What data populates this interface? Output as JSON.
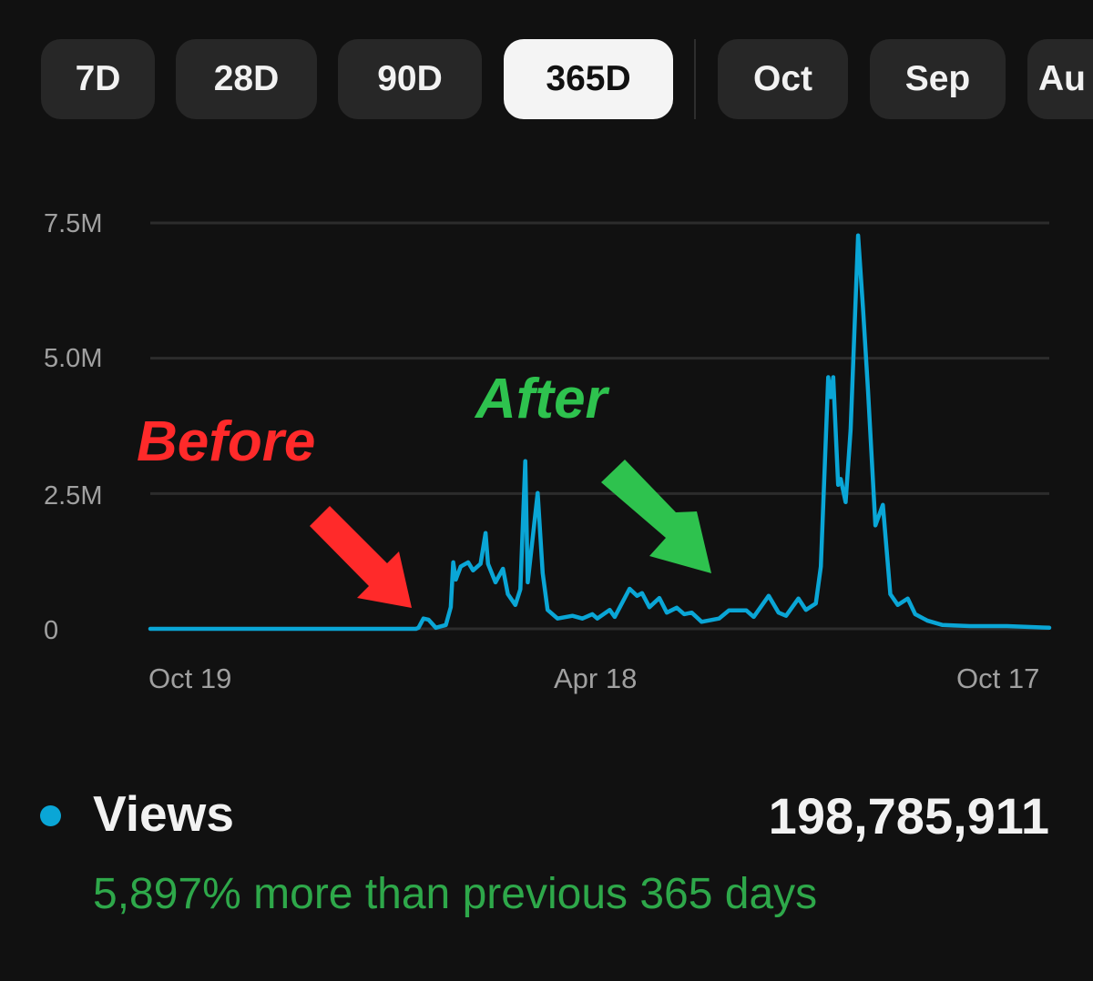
{
  "tabs": [
    {
      "label": "7D",
      "selected": false
    },
    {
      "label": "28D",
      "selected": false
    },
    {
      "label": "90D",
      "selected": false
    },
    {
      "label": "365D",
      "selected": true
    },
    {
      "label": "Oct",
      "selected": false
    },
    {
      "label": "Sep",
      "selected": false
    },
    {
      "label": "Au",
      "selected": false
    }
  ],
  "annotations": {
    "before": "Before",
    "after": "After",
    "before_color": "#ff2a2a",
    "after_color": "#2ec24e"
  },
  "summary": {
    "metric": "Views",
    "total": "198,785,911",
    "comparison": "5,897% more than previous 365 days",
    "dot_color": "#0aa6d6",
    "comparison_color": "#2ea84a"
  },
  "chart_data": {
    "type": "line",
    "title": "",
    "xlabel": "",
    "ylabel": "",
    "x_tick_labels": [
      "Oct 19",
      "Apr 18",
      "Oct 17"
    ],
    "y_tick_labels": [
      "0",
      "2.5M",
      "5.0M",
      "7.5M"
    ],
    "y_ticks": [
      0,
      2500000,
      5000000,
      7500000
    ],
    "ylim": [
      0,
      7500000
    ],
    "xlim": [
      "Oct 19",
      "Oct 17"
    ],
    "grid": true,
    "series_color": "#0aa6d6",
    "unit": "millions of views per day",
    "series": [
      {
        "points": [
          [
            "Oct 19",
            0
          ],
          [
            "Feb 3",
            0
          ],
          [
            "Feb 4",
            0.02
          ],
          [
            "Feb 6",
            0.19
          ],
          [
            "Feb 8",
            0.17
          ],
          [
            "Feb 11",
            0.02
          ],
          [
            "Feb 15",
            0.07
          ],
          [
            "Feb 17",
            0.4
          ],
          [
            "Feb 18",
            1.23
          ],
          [
            "Feb 19",
            0.91
          ],
          [
            "Feb 21",
            1.15
          ],
          [
            "Feb 24",
            1.23
          ],
          [
            "Feb 26",
            1.08
          ],
          [
            "Mar 1",
            1.2
          ],
          [
            "Mar 3",
            1.77
          ],
          [
            "Mar 4",
            1.2
          ],
          [
            "Mar 7",
            0.86
          ],
          [
            "Mar 10",
            1.11
          ],
          [
            "Mar 12",
            0.64
          ],
          [
            "Mar 15",
            0.44
          ],
          [
            "Mar 17",
            0.73
          ],
          [
            "Mar 19",
            3.1
          ],
          [
            "Mar 20",
            0.86
          ],
          [
            "Mar 24",
            2.51
          ],
          [
            "Mar 26",
            1.03
          ],
          [
            "Mar 28",
            0.35
          ],
          [
            "Apr 1",
            0.19
          ],
          [
            "Apr 7",
            0.24
          ],
          [
            "Apr 11",
            0.19
          ],
          [
            "Apr 15",
            0.27
          ],
          [
            "Apr 17",
            0.19
          ],
          [
            "Apr 22",
            0.35
          ],
          [
            "Apr 24",
            0.22
          ],
          [
            "Apr 30",
            0.74
          ],
          [
            "May 3",
            0.61
          ],
          [
            "May 5",
            0.66
          ],
          [
            "May 8",
            0.4
          ],
          [
            "May 12",
            0.57
          ],
          [
            "May 15",
            0.3
          ],
          [
            "May 19",
            0.39
          ],
          [
            "May 22",
            0.27
          ],
          [
            "May 25",
            0.3
          ],
          [
            "May 29",
            0.13
          ],
          [
            "Jun 5",
            0.19
          ],
          [
            "Jun 9",
            0.34
          ],
          [
            "Jun 16",
            0.34
          ],
          [
            "Jun 19",
            0.22
          ],
          [
            "Jun 25",
            0.61
          ],
          [
            "Jun 29",
            0.3
          ],
          [
            "Jul 2",
            0.24
          ],
          [
            "Jul 7",
            0.56
          ],
          [
            "Jul 10",
            0.35
          ],
          [
            "Jul 14",
            0.47
          ],
          [
            "Jul 16",
            1.15
          ],
          [
            "Jul 19",
            4.65
          ],
          [
            "Jul 20",
            4.28
          ],
          [
            "Jul 21",
            4.65
          ],
          [
            "Jul 23",
            2.66
          ],
          [
            "Jul 24",
            2.77
          ],
          [
            "Jul 26",
            2.34
          ],
          [
            "Jul 28",
            3.68
          ],
          [
            "Jul 31",
            7.27
          ],
          [
            "Aug 2",
            5.92
          ],
          [
            "Aug 4",
            4.4
          ],
          [
            "Aug 7",
            1.91
          ],
          [
            "Aug 10",
            2.29
          ],
          [
            "Aug 13",
            0.64
          ],
          [
            "Aug 16",
            0.44
          ],
          [
            "Aug 20",
            0.56
          ],
          [
            "Aug 23",
            0.27
          ],
          [
            "Aug 28",
            0.15
          ],
          [
            "Sep 3",
            0.07
          ],
          [
            "Sep 14",
            0.05
          ],
          [
            "Sep 29",
            0.05
          ],
          [
            "Oct 17",
            0.02
          ]
        ]
      }
    ]
  }
}
